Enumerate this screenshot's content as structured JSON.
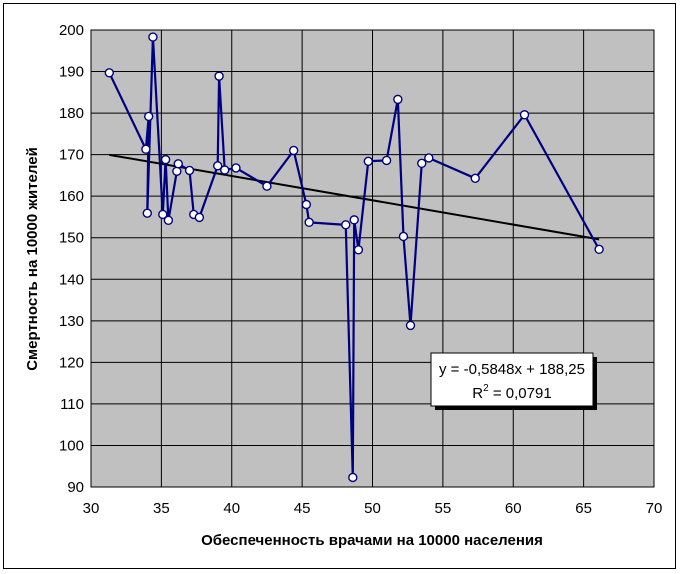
{
  "chart_data": {
    "type": "scatter",
    "xlabel": "Обеспеченность врачами на 10000 населения",
    "ylabel": "Смертность на 10000 жителей",
    "xlim": [
      30,
      70
    ],
    "ylim": [
      90,
      200
    ],
    "xticks": [
      30,
      35,
      40,
      45,
      50,
      55,
      60,
      65,
      70
    ],
    "yticks": [
      90,
      100,
      110,
      120,
      130,
      140,
      150,
      160,
      170,
      180,
      190,
      200
    ],
    "grid": true,
    "plot_background": "#c0c0c0",
    "series_color": "#000080",
    "trendline_color": "#000000",
    "series": [
      {
        "x": [
          31.3,
          33.9,
          34.1,
          34.0,
          34.4,
          35.1,
          35.3,
          35.5,
          36.1,
          36.2,
          37.0,
          37.3,
          37.7,
          39.0,
          39.1,
          39.5,
          40.3,
          42.5,
          44.4,
          45.3,
          45.5,
          48.1,
          48.6,
          48.7,
          49.0,
          49.7,
          51.0,
          51.8,
          52.2,
          52.7,
          53.5,
          54.0,
          57.3,
          60.8,
          66.1
        ],
        "y": [
          189.7,
          171.3,
          179.2,
          155.9,
          198.3,
          155.6,
          168.8,
          154.2,
          166.0,
          167.8,
          166.2,
          155.6,
          154.9,
          167.3,
          188.9,
          166.3,
          166.8,
          162.4,
          171.0,
          158.0,
          153.7,
          153.1,
          92.3,
          154.3,
          147.1,
          168.4,
          168.6,
          183.3,
          150.3,
          128.9,
          167.9,
          169.2,
          164.3,
          179.6,
          147.2
        ]
      }
    ],
    "trendline": {
      "x": [
        31.3,
        66.1
      ],
      "equation_line1": "y = -0,5848x + 188,25",
      "equation_line2_prefix": "R",
      "equation_line2_sup": "2",
      "equation_line2_suffix": " = 0,0791"
    }
  }
}
